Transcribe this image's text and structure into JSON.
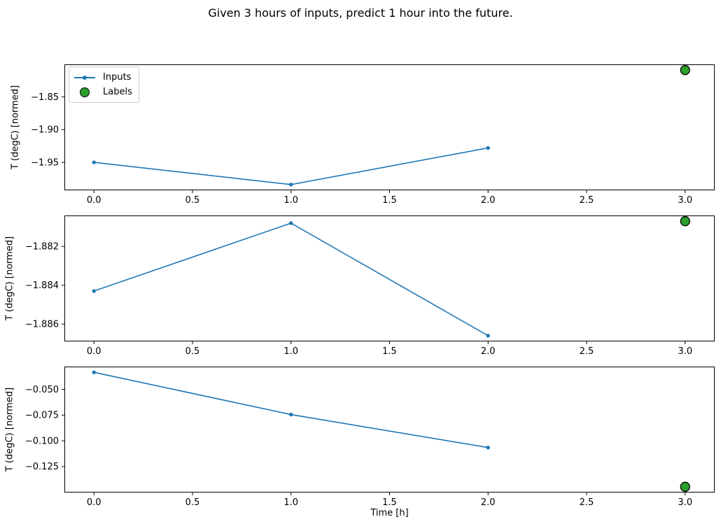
{
  "title": "Given 3 hours of inputs, predict 1 hour into the future.",
  "xlabel": "Time [h]",
  "legend": {
    "items": [
      "Inputs",
      "Labels"
    ]
  },
  "colors": {
    "inputs_line": "#1f77b4",
    "labels_fill": "#2ca02c",
    "labels_edge": "#000000",
    "axes": "#000000",
    "text": "#000000",
    "legend_border": "#cccccc",
    "background": "#ffffff"
  },
  "chart_data": [
    {
      "type": "line",
      "title": "",
      "xlabel": "",
      "ylabel": "T (degC) [normed]",
      "grid": false,
      "legend_shown": true,
      "legend_position": "upper left",
      "xlim": [
        -0.15,
        3.15
      ],
      "ylim": [
        -1.99275,
        -1.80025
      ],
      "xticks": [
        0,
        0.5,
        1,
        1.5,
        2,
        2.5,
        3
      ],
      "xtick_labels": [
        "0.0",
        "0.5",
        "1.0",
        "1.5",
        "2.0",
        "2.5",
        "3.0"
      ],
      "yticks": [
        -1.85,
        -1.9,
        -1.95
      ],
      "ytick_labels": [
        "−1.85",
        "−1.90",
        "−1.95"
      ],
      "series": [
        {
          "name": "Inputs",
          "type": "line",
          "x": [
            0,
            1,
            2
          ],
          "y": [
            -1.95,
            -1.984,
            -1.928
          ]
        },
        {
          "name": "Labels",
          "type": "scatter",
          "x": [
            3
          ],
          "y": [
            -1.809
          ]
        }
      ]
    },
    {
      "type": "line",
      "title": "",
      "xlabel": "",
      "ylabel": "T (degC) [normed]",
      "grid": false,
      "legend_shown": false,
      "xlim": [
        -0.15,
        3.15
      ],
      "ylim": [
        -1.886895,
        -1.880405
      ],
      "xticks": [
        0,
        0.5,
        1,
        1.5,
        2,
        2.5,
        3
      ],
      "xtick_labels": [
        "0.0",
        "0.5",
        "1.0",
        "1.5",
        "2.0",
        "2.5",
        "3.0"
      ],
      "yticks": [
        -1.882,
        -1.884,
        -1.886
      ],
      "ytick_labels": [
        "−1.882",
        "−1.884",
        "−1.886"
      ],
      "series": [
        {
          "name": "Inputs",
          "type": "line",
          "x": [
            0,
            1,
            2
          ],
          "y": [
            -1.8843,
            -1.8808,
            -1.8866
          ]
        },
        {
          "name": "Labels",
          "type": "scatter",
          "x": [
            3
          ],
          "y": [
            -1.8807
          ]
        }
      ]
    },
    {
      "type": "line",
      "title": "",
      "xlabel": "Time [h]",
      "ylabel": "T (degC) [normed]",
      "grid": false,
      "legend_shown": false,
      "xlim": [
        -0.15,
        3.15
      ],
      "ylim": [
        -0.150155,
        -0.027945
      ],
      "xticks": [
        0,
        0.5,
        1,
        1.5,
        2,
        2.5,
        3
      ],
      "xtick_labels": [
        "0.0",
        "0.5",
        "1.0",
        "1.5",
        "2.0",
        "2.5",
        "3.0"
      ],
      "yticks": [
        -0.05,
        -0.075,
        -0.1,
        -0.125
      ],
      "ytick_labels": [
        "−0.050",
        "−0.075",
        "−0.100",
        "−0.125"
      ],
      "series": [
        {
          "name": "Inputs",
          "type": "line",
          "x": [
            0,
            1,
            2
          ],
          "y": [
            -0.0335,
            -0.0745,
            -0.1065
          ]
        },
        {
          "name": "Labels",
          "type": "scatter",
          "x": [
            3
          ],
          "y": [
            -0.1446
          ]
        }
      ]
    }
  ]
}
